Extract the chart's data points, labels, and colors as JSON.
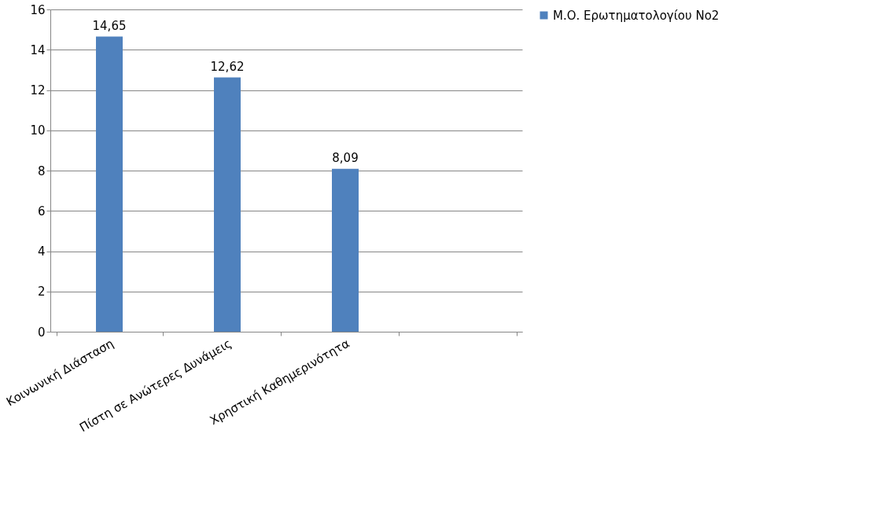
{
  "chart_data": {
    "type": "bar",
    "categories": [
      "Κοινωνική Διάσταση",
      "Πίστη σε Ανώτερες Δυνάμεις",
      "Χρηστική Καθημερινότητα",
      null
    ],
    "series": [
      {
        "name": "Μ.Ο. Ερωτηματολογίου Νο2",
        "color": "#4f81bd",
        "values": [
          14.65,
          12.62,
          8.09,
          null
        ],
        "value_labels": [
          "14,65",
          "12,62",
          "8,09",
          null
        ]
      }
    ],
    "ylim": [
      0,
      16
    ],
    "yticks": [
      0,
      2,
      4,
      6,
      8,
      10,
      12,
      14,
      16
    ],
    "grid": "y",
    "legend": "right"
  }
}
